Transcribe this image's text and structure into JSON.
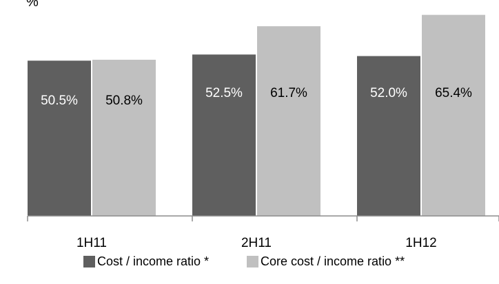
{
  "chart_data": {
    "type": "bar",
    "unit": "%",
    "categories": [
      "1H11",
      "2H11",
      "1H12"
    ],
    "series": [
      {
        "name": "Cost / income ratio *",
        "values": [
          50.5,
          52.5,
          52.0
        ],
        "labels": [
          "50.5%",
          "52.5%",
          "52.0%"
        ],
        "color": "#5f5f5f",
        "label_color": "#ffffff"
      },
      {
        "name": "Core cost / income ratio **",
        "values": [
          50.8,
          61.7,
          65.4
        ],
        "labels": [
          "50.8%",
          "61.7%",
          "65.4%"
        ],
        "color": "#c0c0c0",
        "label_color": "#000000"
      }
    ],
    "ylim": [
      0,
      68
    ],
    "grid": false,
    "legend_position": "bottom"
  }
}
